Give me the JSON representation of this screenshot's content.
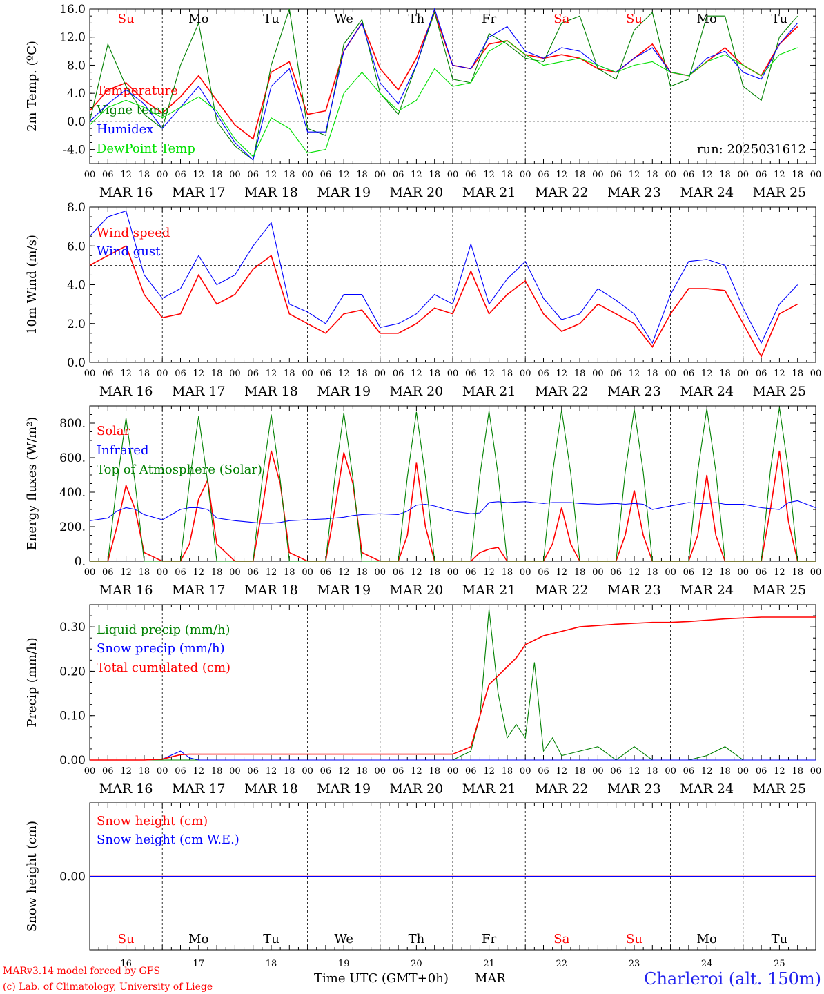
{
  "run_label": "run: 2025031612",
  "location": "Charleroi (alt. 150m)",
  "model_credit": "MARv3.14 model forced by GFS",
  "lab_credit": "(c) Lab. of Climatology, University of Liege",
  "time_axis_label": "Time UTC (GMT+0h)",
  "month_label": "MAR",
  "hour_ticks": [
    "00",
    "06",
    "12",
    "18"
  ],
  "dates": [
    "MAR 16",
    "MAR 17",
    "MAR 18",
    "MAR 19",
    "MAR 20",
    "MAR 21",
    "MAR 22",
    "MAR 23",
    "MAR 24",
    "MAR 25"
  ],
  "day_numbers": [
    "16",
    "17",
    "18",
    "19",
    "20",
    "21",
    "22",
    "23",
    "24",
    "25"
  ],
  "weekdays": [
    "Su",
    "Mo",
    "Tu",
    "We",
    "Th",
    "Fr",
    "Sa",
    "Su",
    "Mo",
    "Tu"
  ],
  "weekend_flags": [
    true,
    false,
    false,
    false,
    false,
    false,
    true,
    true,
    false,
    false
  ],
  "colors": {
    "red": "#ff0000",
    "blue": "#0000ff",
    "green": "#008000",
    "lightgreen": "#00e000",
    "purple": "#2222ee"
  },
  "chart_data": [
    {
      "type": "line",
      "ylabel": "2m Temp. (ºC)",
      "ylim": [
        -6,
        16
      ],
      "yticks": [
        "16.0",
        "12.0",
        "8.0",
        "4.0",
        "0.0",
        "-4.0"
      ],
      "ytick_values": [
        16,
        12,
        8,
        4,
        0,
        -4
      ],
      "ref_line": 0,
      "x": [
        0,
        6,
        12,
        18,
        24,
        30,
        36,
        42,
        48,
        54,
        60,
        66,
        72,
        78,
        84,
        90,
        96,
        102,
        108,
        114,
        120,
        126,
        132,
        138,
        144,
        150,
        156,
        162,
        168,
        174,
        180,
        186,
        192,
        198,
        204,
        210,
        216,
        222,
        228,
        234
      ],
      "series": [
        {
          "name": "Temperature",
          "color": "red",
          "values": [
            1.5,
            4.5,
            5.5,
            3,
            1.2,
            3.5,
            6.5,
            3,
            -0.5,
            -2.5,
            7,
            8.5,
            1,
            1.5,
            10,
            14,
            7.5,
            4.5,
            9,
            15.5,
            8,
            7.5,
            11,
            11.5,
            9.5,
            9,
            9.5,
            9,
            7.5,
            7,
            9,
            11,
            7,
            6.5,
            8.5,
            10.5,
            8,
            6.5,
            11,
            13.5
          ]
        },
        {
          "name": "Vigne temp",
          "color": "green",
          "values": [
            0,
            11,
            5,
            1,
            -1,
            8,
            14,
            0,
            -3.5,
            -5.5,
            8,
            16,
            -1,
            -2,
            11,
            14.5,
            4,
            1,
            8,
            15.5,
            6,
            5.5,
            12.5,
            11,
            9,
            8.5,
            14,
            15,
            7.5,
            6,
            13,
            15.5,
            5,
            6,
            15,
            15,
            5,
            3,
            12,
            15
          ]
        },
        {
          "name": "Humidex",
          "color": "blue",
          "values": [
            0,
            2.5,
            4.5,
            2.5,
            -1,
            2,
            5,
            1,
            -3,
            -5.5,
            5,
            7.5,
            -1.5,
            -1.5,
            10,
            14,
            5.5,
            2.5,
            8,
            16,
            8,
            7.5,
            12,
            13.5,
            10,
            9,
            10.5,
            10,
            8,
            7,
            9,
            10.5,
            7,
            6.5,
            9,
            10,
            7,
            6,
            11,
            14
          ]
        },
        {
          "name": "DewPoint Temp",
          "color": "lightgreen",
          "values": [
            -0.5,
            2,
            3,
            2,
            0.5,
            2,
            3.5,
            1.5,
            -2.5,
            -5,
            0.5,
            -1,
            -4.5,
            -4,
            4,
            7,
            4,
            1.5,
            3,
            7.5,
            5,
            5.5,
            10,
            11.5,
            9.5,
            8,
            8.5,
            9,
            8,
            7,
            8,
            8.5,
            7,
            6.5,
            8.5,
            9.5,
            8,
            6.5,
            9.5,
            10.5
          ]
        }
      ]
    },
    {
      "type": "line",
      "ylabel": "10m Wind (m/s)",
      "ylim": [
        0,
        8
      ],
      "yticks": [
        "8.0",
        "6.0",
        "4.0",
        "2.0",
        "0.0"
      ],
      "ytick_values": [
        8,
        6,
        4,
        2,
        0
      ],
      "ref_line": 5,
      "x": [
        0,
        6,
        12,
        18,
        24,
        30,
        36,
        42,
        48,
        54,
        60,
        66,
        72,
        78,
        84,
        90,
        96,
        102,
        108,
        114,
        120,
        126,
        132,
        138,
        144,
        150,
        156,
        162,
        168,
        174,
        180,
        186,
        192,
        198,
        204,
        210,
        216,
        222,
        228,
        234
      ],
      "series": [
        {
          "name": "Wind speed",
          "color": "red",
          "values": [
            5,
            5.5,
            6,
            3.5,
            2.3,
            2.5,
            4.5,
            3,
            3.5,
            4.8,
            5.5,
            2.5,
            2,
            1.5,
            2.5,
            2.7,
            1.5,
            1.5,
            2,
            2.8,
            2.5,
            4.7,
            2.5,
            3.5,
            4.2,
            2.5,
            1.6,
            2,
            3,
            2.5,
            2,
            0.8,
            2.5,
            3.8,
            3.8,
            3.7,
            2,
            0.3,
            2.5,
            3
          ]
        },
        {
          "name": "Wind gust",
          "color": "blue",
          "values": [
            6.5,
            7.5,
            7.8,
            4.5,
            3.3,
            3.8,
            5.5,
            4,
            4.5,
            6,
            7.2,
            3,
            2.6,
            2,
            3.5,
            3.5,
            1.8,
            2,
            2.5,
            3.5,
            3,
            6.1,
            3,
            4.3,
            5.2,
            3.3,
            2.2,
            2.5,
            3.8,
            3.2,
            2.5,
            1,
            3.5,
            5.2,
            5.3,
            5,
            2.8,
            1,
            3,
            4
          ]
        }
      ]
    },
    {
      "type": "line",
      "ylabel": "Energy fluxes (W/m²)",
      "ylim": [
        0,
        900
      ],
      "yticks": [
        "800.",
        "600.",
        "400.",
        "200.",
        "0."
      ],
      "ytick_values": [
        800,
        600,
        400,
        200,
        0
      ],
      "x": [
        0,
        6,
        9,
        12,
        15,
        18,
        24,
        30,
        33,
        36,
        39,
        42,
        48,
        54,
        57,
        60,
        63,
        66,
        72,
        78,
        81,
        84,
        87,
        90,
        96,
        102,
        105,
        108,
        111,
        114,
        120,
        126,
        129,
        132,
        135,
        138,
        144,
        150,
        153,
        156,
        159,
        162,
        168,
        174,
        177,
        180,
        183,
        186,
        192,
        198,
        201,
        204,
        207,
        210,
        216,
        222,
        225,
        228,
        231,
        234,
        240
      ],
      "series": [
        {
          "name": "Solar",
          "color": "red",
          "values": [
            0,
            0,
            200,
            440,
            300,
            50,
            0,
            0,
            100,
            360,
            470,
            100,
            0,
            0,
            300,
            640,
            450,
            50,
            0,
            0,
            300,
            630,
            450,
            50,
            0,
            0,
            150,
            570,
            200,
            0,
            0,
            0,
            50,
            70,
            80,
            0,
            0,
            0,
            100,
            310,
            100,
            0,
            0,
            0,
            150,
            410,
            150,
            0,
            0,
            0,
            150,
            500,
            150,
            0,
            0,
            0,
            300,
            640,
            230,
            0,
            0
          ]
        },
        {
          "name": "Infrared",
          "color": "blue",
          "values": [
            235,
            250,
            290,
            310,
            300,
            270,
            240,
            300,
            310,
            310,
            300,
            250,
            235,
            225,
            220,
            220,
            225,
            235,
            240,
            245,
            250,
            255,
            265,
            270,
            275,
            270,
            290,
            325,
            330,
            320,
            290,
            275,
            280,
            340,
            345,
            340,
            345,
            335,
            340,
            340,
            340,
            335,
            330,
            335,
            330,
            335,
            330,
            300,
            320,
            340,
            335,
            335,
            340,
            330,
            330,
            310,
            305,
            300,
            340,
            350,
            310
          ]
        },
        {
          "name": "Top of Atmosphere (Solar)",
          "color": "green",
          "values": [
            0,
            0,
            450,
            830,
            450,
            0,
            0,
            0,
            460,
            840,
            460,
            0,
            0,
            0,
            470,
            850,
            470,
            0,
            0,
            0,
            480,
            860,
            480,
            0,
            0,
            0,
            490,
            865,
            490,
            0,
            0,
            0,
            500,
            870,
            500,
            0,
            0,
            0,
            510,
            875,
            510,
            0,
            0,
            0,
            515,
            880,
            515,
            0,
            0,
            0,
            520,
            885,
            520,
            0,
            0,
            0,
            525,
            890,
            525,
            0,
            0
          ]
        }
      ]
    },
    {
      "type": "line",
      "ylabel": "Precip (mm/h)",
      "ylim": [
        0,
        0.35
      ],
      "yticks": [
        "0.30",
        "0.20",
        "0.10",
        "0.00"
      ],
      "ytick_values": [
        0.3,
        0.2,
        0.1,
        0
      ],
      "x": [
        0,
        6,
        12,
        18,
        24,
        30,
        33,
        36,
        42,
        48,
        54,
        60,
        66,
        72,
        78,
        84,
        90,
        96,
        102,
        108,
        114,
        120,
        126,
        129,
        132,
        135,
        138,
        141,
        144,
        147,
        150,
        153,
        156,
        162,
        168,
        174,
        180,
        186,
        192,
        198,
        204,
        210,
        216,
        222,
        228,
        234,
        240
      ],
      "series": [
        {
          "name": "Liquid precip (mm/h)",
          "color": "green",
          "values": [
            0,
            0,
            0,
            0,
            0,
            0,
            0,
            0,
            0,
            0,
            0,
            0,
            0,
            0,
            0,
            0,
            0,
            0,
            0,
            0,
            0,
            0,
            0.02,
            0.1,
            0.34,
            0.15,
            0.05,
            0.08,
            0.05,
            0.22,
            0.02,
            0.05,
            0.01,
            0.02,
            0.03,
            0,
            0.03,
            0,
            0,
            0,
            0.01,
            0.03,
            0,
            0,
            0,
            0,
            0
          ]
        },
        {
          "name": "Snow precip (mm/h)",
          "color": "blue",
          "values": [
            0,
            0,
            0,
            0,
            0.002,
            0.02,
            0.005,
            0,
            0,
            0,
            0,
            0,
            0,
            0,
            0,
            0,
            0,
            0,
            0,
            0,
            0,
            0,
            0,
            0,
            0,
            0,
            0,
            0,
            0,
            0,
            0,
            0,
            0,
            0,
            0,
            0,
            0,
            0,
            0,
            0,
            0,
            0,
            0,
            0,
            0,
            0,
            0
          ]
        },
        {
          "name": "Total cumulated (cm)",
          "color": "red",
          "values": [
            0,
            0,
            0,
            0,
            0.002,
            0.012,
            0.013,
            0.013,
            0.013,
            0.013,
            0.013,
            0.013,
            0.013,
            0.013,
            0.013,
            0.013,
            0.013,
            0.013,
            0.013,
            0.013,
            0.013,
            0.013,
            0.03,
            0.1,
            0.17,
            0.19,
            0.21,
            0.23,
            0.26,
            0.27,
            0.28,
            0.285,
            0.29,
            0.3,
            0.303,
            0.306,
            0.308,
            0.31,
            0.31,
            0.312,
            0.315,
            0.318,
            0.32,
            0.322,
            0.322,
            0.322,
            0.322
          ]
        }
      ]
    },
    {
      "type": "line",
      "ylabel": "Snow height (cm)",
      "ylim": [
        -1,
        1
      ],
      "yticks": [
        "0.00"
      ],
      "ytick_values": [
        0
      ],
      "x": [
        0,
        240
      ],
      "series": [
        {
          "name": "Snow height (cm)",
          "color": "red",
          "values": [
            0,
            0
          ]
        },
        {
          "name": "Snow height (cm W.E.)",
          "color": "blue",
          "values": [
            0,
            0
          ]
        }
      ]
    }
  ]
}
